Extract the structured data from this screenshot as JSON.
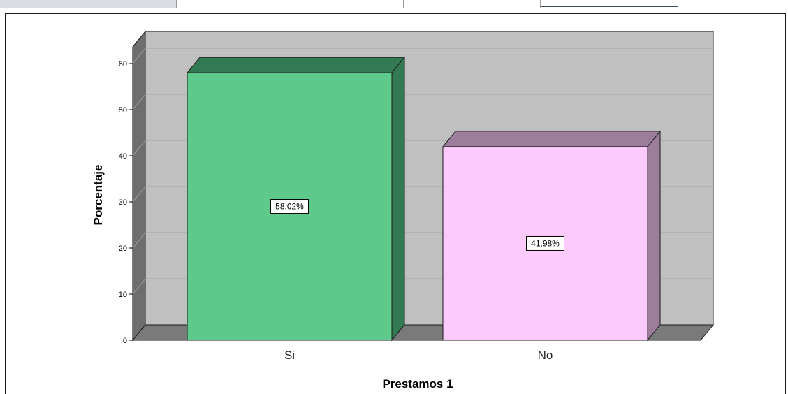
{
  "chart_data": {
    "type": "bar",
    "categories": [
      "Si",
      "No"
    ],
    "values": [
      58.02,
      41.98
    ],
    "data_labels": [
      "58,02%",
      "41,98%"
    ],
    "xlabel": "Prestamos 1",
    "ylabel": "Porcentaje",
    "ylim": [
      0,
      60
    ],
    "yticks": [
      "0",
      "10",
      "20",
      "30",
      "40",
      "50",
      "60"
    ],
    "grid": true,
    "legend": "none",
    "colors": {
      "bars": [
        "#5dc98b",
        "#fccbfc"
      ],
      "bar_sides": [
        "#337a52",
        "#9c7e9c"
      ],
      "wall": "#c0c0c0",
      "floor": "#7a7a7a"
    }
  }
}
